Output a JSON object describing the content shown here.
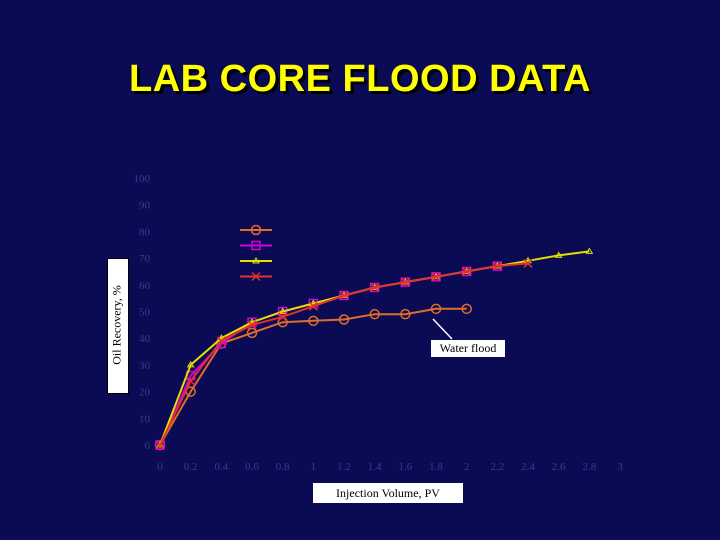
{
  "slide": {
    "title": "LAB CORE FLOOD DATA"
  },
  "chart_data": {
    "type": "line",
    "title": "",
    "xlabel": "Injection Volume, PV",
    "ylabel": "Oil Recovery, %",
    "xlim": [
      0,
      3
    ],
    "ylim": [
      0,
      100
    ],
    "xticks": [
      "0",
      "0.2",
      "0.4",
      "0.6",
      "0.8",
      "1",
      "1.2",
      "1.4",
      "1.6",
      "1.8",
      "2",
      "2.2",
      "2.4",
      "2.6",
      "2.8",
      "3"
    ],
    "yticks": [
      "0",
      "10",
      "20",
      "30",
      "40",
      "50",
      "60",
      "70",
      "80",
      "90",
      "100"
    ],
    "grid": false,
    "legend_position": "upper-left",
    "series": [
      {
        "name": "",
        "color": "#e06d2a",
        "marker": "circle",
        "x": [
          0,
          0.2,
          0.4,
          0.6,
          0.8,
          1.0,
          1.2,
          1.4,
          1.6,
          1.8,
          2.0
        ],
        "y": [
          0,
          20,
          38,
          42,
          46,
          46.5,
          47,
          49,
          49,
          51,
          51
        ]
      },
      {
        "name": "",
        "color": "#d400d4",
        "marker": "square",
        "x": [
          0,
          0.2,
          0.4,
          0.6,
          0.8,
          1.0,
          1.2,
          1.4,
          1.6,
          1.8,
          2.0,
          2.2
        ],
        "y": [
          0,
          26,
          38,
          46,
          50,
          53,
          56,
          59,
          61,
          63,
          65,
          67
        ]
      },
      {
        "name": "",
        "color": "#e0e000",
        "marker": "triangle",
        "x": [
          0,
          0.2,
          0.4,
          0.6,
          0.8,
          1.0,
          1.2,
          1.4,
          1.6,
          1.8,
          2.0,
          2.2,
          2.4,
          2.6,
          2.8
        ],
        "y": [
          0,
          30,
          40,
          46,
          50,
          53,
          56,
          59,
          61,
          63,
          65,
          67,
          69,
          71,
          72.5
        ]
      },
      {
        "name": "",
        "color": "#e03030",
        "marker": "x",
        "x": [
          0,
          0.2,
          0.4,
          0.6,
          0.8,
          1.0,
          1.2,
          1.4,
          1.6,
          1.8,
          2.0,
          2.2,
          2.4
        ],
        "y": [
          0,
          24,
          39,
          45,
          48,
          52,
          56,
          59,
          61,
          63,
          65,
          67,
          68
        ]
      }
    ],
    "annotations": [
      {
        "text": "Water flood",
        "target_x": 1.78,
        "target_y": 47
      }
    ]
  }
}
